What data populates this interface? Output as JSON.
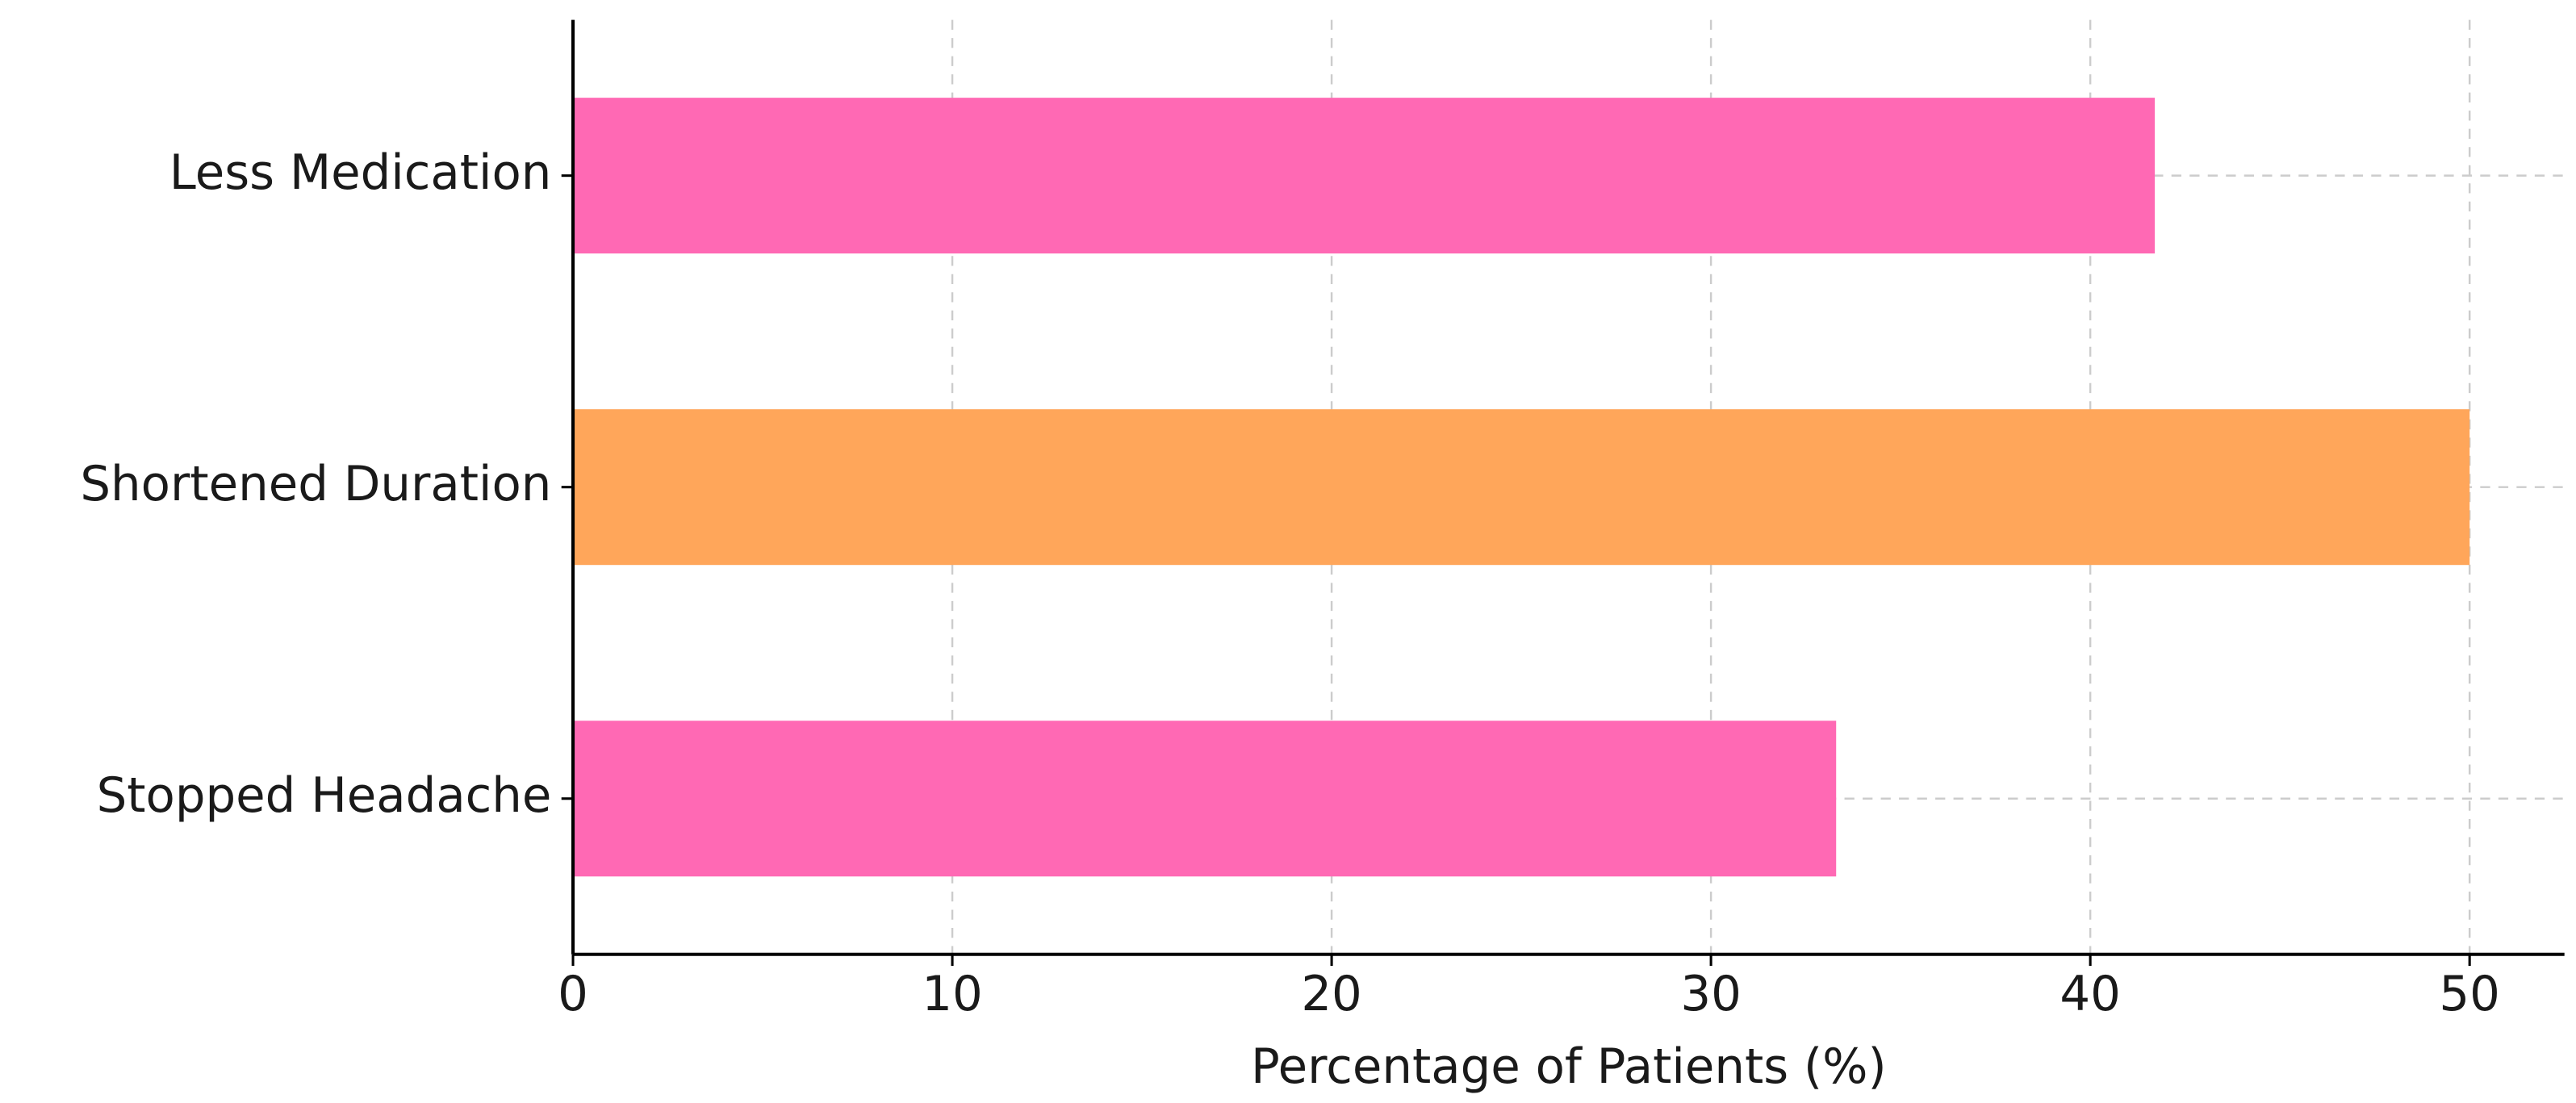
{
  "chart_data": {
    "type": "barh",
    "categories": [
      "Less Medication",
      "Shortened Duration",
      "Stopped Headache"
    ],
    "values": [
      41.7,
      50,
      33.3
    ],
    "colors": [
      "#ff69b4",
      "#ffa65a",
      "#ff69b4"
    ],
    "xlabel": "Percentage of Patients (%)",
    "xlim": [
      0,
      52.5
    ],
    "xticks": [
      0,
      10,
      20,
      30,
      40,
      50
    ],
    "grid": true
  }
}
